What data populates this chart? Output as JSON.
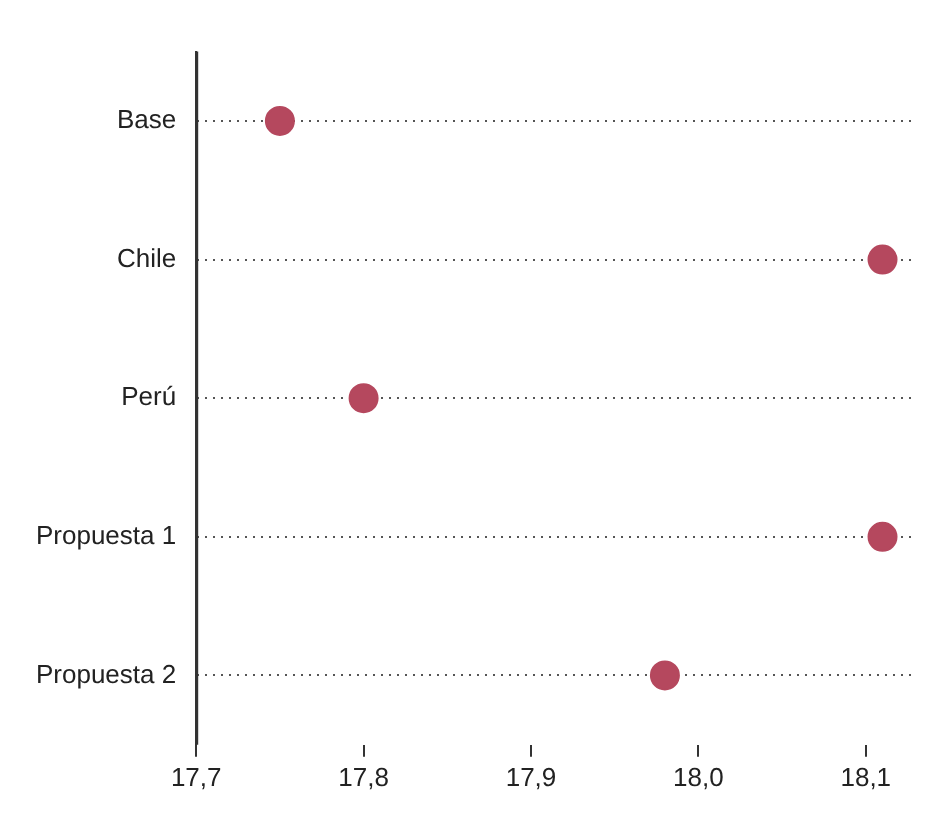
{
  "chart_data": {
    "type": "scatter",
    "orientation": "horizontal",
    "categories": [
      "Base",
      "Chile",
      "Perú",
      "Propuesta 1",
      "Propuesta 2"
    ],
    "values": [
      17.75,
      18.11,
      17.8,
      18.11,
      17.98
    ],
    "color": "#b5485e",
    "marker": "circle",
    "grid": "y",
    "xlim": [
      17.7,
      18.13
    ],
    "xticks": [
      {
        "value": 17.7,
        "label": "17,7"
      },
      {
        "value": 17.8,
        "label": "17,8"
      },
      {
        "value": 17.9,
        "label": "17,9"
      },
      {
        "value": 18.0,
        "label": "18,0"
      },
      {
        "value": 18.1,
        "label": "18,1"
      }
    ]
  }
}
